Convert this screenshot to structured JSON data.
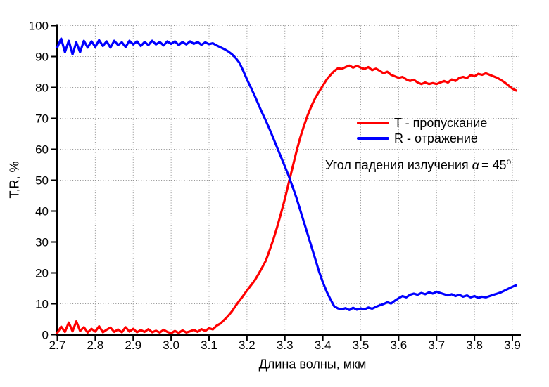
{
  "figure": {
    "background": "#ffffff",
    "text_color": "#000000",
    "grid_color": "#8c8c8c",
    "axis_color": "#000000"
  },
  "annotation": {
    "text": "Угол падения излучения",
    "symbol": "α",
    "relation": "= 45",
    "degree": "o"
  },
  "chart_data": {
    "type": "line",
    "title": "",
    "xlabel": "Длина волны, мкм",
    "ylabel": "T,R, %",
    "xlim": [
      2.7,
      3.92
    ],
    "ylim": [
      0,
      100
    ],
    "grid": "dotted",
    "legend_position": "center-right",
    "annotation": "Угол падения излучения α = 45°",
    "x_ticks": [
      2.7,
      2.8,
      2.9,
      3.0,
      3.1,
      3.2,
      3.3,
      3.4,
      3.5,
      3.6,
      3.7,
      3.8,
      3.9
    ],
    "x_tick_labels": [
      "2.7",
      "2.8",
      "2.9",
      "3.0",
      "3.1",
      "3.2",
      "3.3",
      "3.4",
      "3.5",
      "3.6",
      "3.7",
      "3.8",
      "3.9"
    ],
    "y_ticks": [
      0,
      10,
      20,
      30,
      40,
      50,
      60,
      70,
      80,
      90,
      100
    ],
    "y_tick_labels": [
      "0",
      "10",
      "20",
      "30",
      "40",
      "50",
      "60",
      "70",
      "80",
      "90",
      "100"
    ],
    "x_start": 2.7,
    "x_step": 0.01,
    "series": [
      {
        "name": "T",
        "label": "T - пропускание",
        "color": "#ff0000",
        "values": [
          0.6,
          2.6,
          0.9,
          3.9,
          1.1,
          4.3,
          1.2,
          2.4,
          0.7,
          1.9,
          1.0,
          2.7,
          0.8,
          1.6,
          2.3,
          0.9,
          1.7,
          0.8,
          2.4,
          1.0,
          1.9,
          0.8,
          1.5,
          0.9,
          1.8,
          0.8,
          1.3,
          0.7,
          1.6,
          0.9,
          0.5,
          1.2,
          0.6,
          1.4,
          0.7,
          1.1,
          1.6,
          0.9,
          1.8,
          1.2,
          2.1,
          1.7,
          2.9,
          3.6,
          4.8,
          6.0,
          7.5,
          9.3,
          11.0,
          12.6,
          14.3,
          15.9,
          17.5,
          19.5,
          21.7,
          24.0,
          27.4,
          31.0,
          35.0,
          39.4,
          44.0,
          49.0,
          54.0,
          59.0,
          63.6,
          67.5,
          71.0,
          74.0,
          76.6,
          78.6,
          80.6,
          82.5,
          84.0,
          85.3,
          86.2,
          86.0,
          86.6,
          87.1,
          86.4,
          87.0,
          86.4,
          86.0,
          86.6,
          85.6,
          86.1,
          85.4,
          84.6,
          85.1,
          84.1,
          83.6,
          83.1,
          83.4,
          82.6,
          82.1,
          82.5,
          81.6,
          81.1,
          81.6,
          81.1,
          81.4,
          81.1,
          81.6,
          82.1,
          81.6,
          82.6,
          82.1,
          83.1,
          83.4,
          83.0,
          84.0,
          83.6,
          84.4,
          84.1,
          84.6,
          84.1,
          83.6,
          83.1,
          82.4,
          81.6,
          80.6,
          79.6,
          79.0
        ]
      },
      {
        "name": "R",
        "label": "R - отражение",
        "color": "#0000ff",
        "values": [
          93.0,
          95.8,
          91.4,
          95.1,
          90.7,
          94.6,
          91.4,
          95.1,
          92.9,
          94.9,
          93.1,
          95.3,
          93.4,
          94.9,
          92.9,
          95.1,
          93.7,
          94.6,
          93.1,
          95.1,
          93.9,
          94.9,
          93.4,
          94.7,
          93.7,
          95.1,
          93.9,
          94.7,
          93.6,
          94.9,
          94.1,
          94.9,
          93.7,
          94.7,
          93.9,
          94.9,
          94.1,
          94.7,
          93.8,
          94.6,
          94.0,
          94.3,
          93.6,
          93.0,
          92.4,
          91.7,
          90.8,
          89.6,
          88.0,
          85.4,
          82.6,
          80.0,
          77.4,
          74.6,
          71.8,
          69.2,
          66.4,
          63.4,
          60.4,
          57.4,
          54.4,
          51.4,
          48.0,
          44.5,
          40.5,
          36.5,
          32.5,
          28.5,
          24.5,
          20.5,
          17.0,
          14.0,
          11.5,
          9.2,
          8.5,
          8.2,
          8.6,
          8.0,
          8.7,
          8.1,
          8.5,
          8.2,
          8.8,
          8.4,
          9.0,
          9.5,
          9.9,
          10.5,
          10.1,
          11.0,
          11.8,
          12.5,
          12.1,
          12.9,
          13.3,
          12.9,
          13.5,
          13.1,
          13.7,
          13.3,
          13.9,
          13.5,
          13.1,
          12.7,
          13.1,
          12.5,
          12.9,
          12.3,
          12.7,
          12.1,
          12.5,
          11.9,
          12.3,
          12.1,
          12.5,
          12.9,
          13.3,
          13.7,
          14.3,
          14.9,
          15.5,
          16.0
        ]
      }
    ]
  }
}
